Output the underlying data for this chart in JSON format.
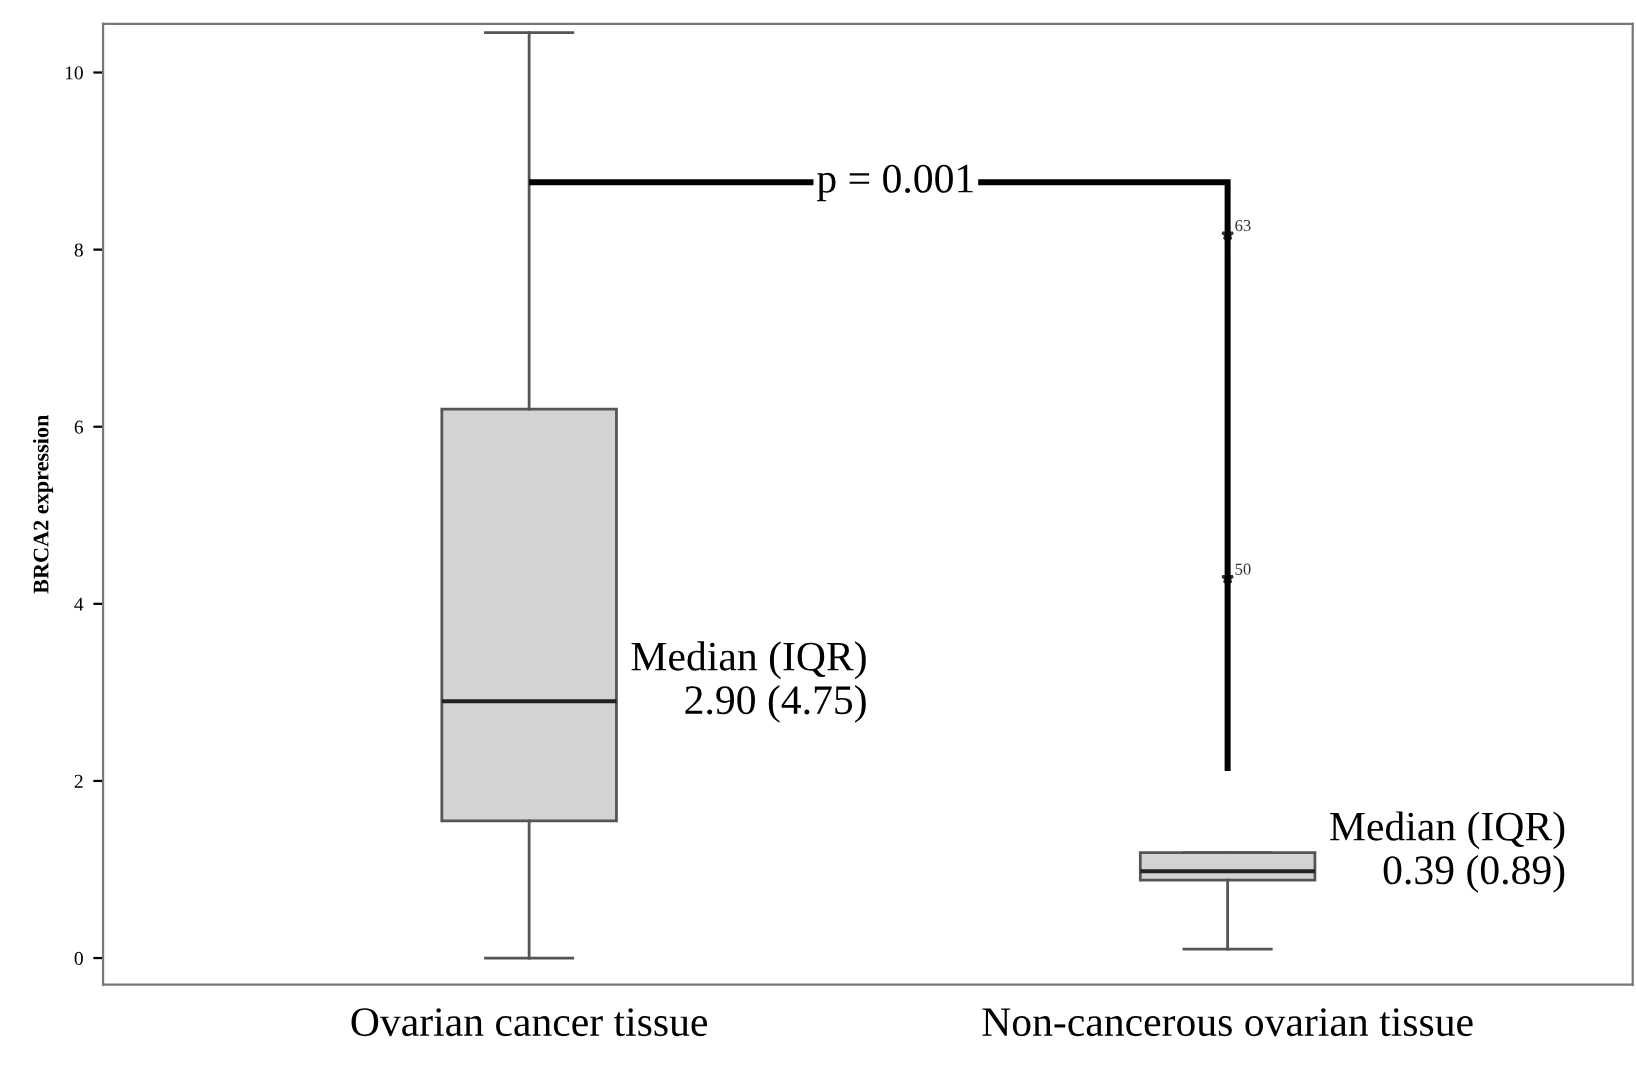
{
  "chart_data": {
    "type": "box",
    "ylabel": "BRCA2 expression",
    "categories": [
      "Ovarian cancer tissue",
      "Non-cancerous ovarian tissue"
    ],
    "boxes": [
      {
        "low": 0,
        "q1": 1.55,
        "median": 2.9,
        "q3": 6.2,
        "high": 10.45
      },
      {
        "low": 0.1,
        "q1": 0.88,
        "median": 0.98,
        "q3": 1.19,
        "high": 1.19,
        "outliers": [
          4.29,
          8.17
        ]
      }
    ],
    "color": "#d3d3d3",
    "ylim": [
      -0.3,
      10.55
    ],
    "yticks": [
      0,
      2,
      4,
      6,
      8,
      10
    ],
    "grid": false,
    "legend": false,
    "annotations": [
      "p = 0.001",
      "Median (IQR)\n2.90 (4.75)",
      "Median (IQR)\n0.39 (0.89)",
      "50",
      "63"
    ]
  }
}
